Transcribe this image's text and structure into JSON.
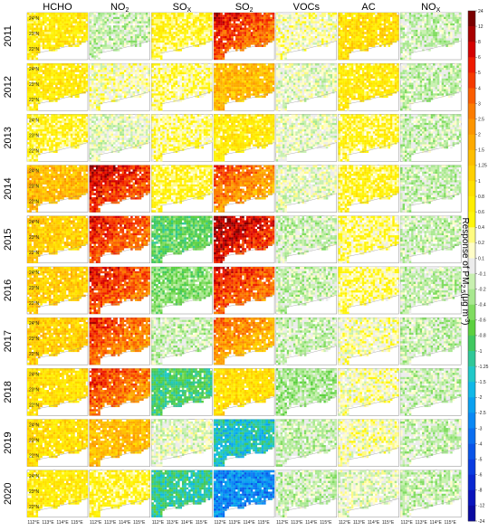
{
  "chart_data": {
    "type": "heatmap",
    "title": "",
    "columns": [
      {
        "base": "HCHO",
        "sub": ""
      },
      {
        "base": "NO",
        "sub": "2"
      },
      {
        "base": "SO",
        "sub": "X"
      },
      {
        "base": "SO",
        "sub": "2"
      },
      {
        "base": "VOCs",
        "sub": ""
      },
      {
        "base": "AC",
        "sub": ""
      },
      {
        "base": "NO",
        "sub": "X"
      }
    ],
    "rows": [
      "2011",
      "2012",
      "2013",
      "2014",
      "2015",
      "2016",
      "2017",
      "2018",
      "2019",
      "2020"
    ],
    "lat_ticks": [
      "24°N",
      "23°N",
      "22°N"
    ],
    "lon_ticks": [
      "112°E",
      "113°E",
      "114°E",
      "115°E"
    ],
    "colorbar": {
      "label_prefix": "Response of  PM",
      "label_sub": "2.5",
      "label_suffix": "(μg m",
      "label_sup": "-3",
      "label_end": ")",
      "ticks": [
        "24",
        "12",
        "8",
        "6",
        "5",
        "4",
        "3",
        "2.5",
        "2",
        "1.5",
        "1.25",
        "1",
        "0.8",
        "0.6",
        "0.4",
        "0.2",
        "0.1",
        "-0.1",
        "-0.2",
        "-0.4",
        "-0.6",
        "-0.8",
        "-1",
        "-1.25",
        "-1.5",
        "-2",
        "-2.5",
        "-3",
        "-4",
        "-5",
        "-6",
        "-8",
        "-12",
        "-24"
      ],
      "colors": [
        "#7a0000",
        "#a80000",
        "#d40000",
        "#ee1a00",
        "#f53a00",
        "#fa5c00",
        "#fc7c00",
        "#fd9500",
        "#feaa00",
        "#febe00",
        "#ffd000",
        "#ffe000",
        "#ffee00",
        "#fff60a",
        "#fffb80",
        "#fffdc8",
        "#ececec",
        "#c8f0b0",
        "#a8e890",
        "#80dc60",
        "#5cd040",
        "#40c860",
        "#30c898",
        "#20c8c8",
        "#10b8e8",
        "#0aa0f0",
        "#0a88f5",
        "#0a6ef0",
        "#0a54e8",
        "#0a3ce0",
        "#0a28d0",
        "#0a14bc",
        "#0a0aa0"
      ]
    },
    "mean_level_matrix": [
      [
        12,
        17,
        13,
        5,
        15,
        11,
        17
      ],
      [
        12,
        15,
        14,
        9,
        16,
        12,
        17
      ],
      [
        13,
        16,
        14,
        12,
        16,
        13,
        17
      ],
      [
        9,
        4,
        13,
        7,
        16,
        13,
        17
      ],
      [
        10,
        5,
        20,
        3,
        17,
        14,
        17
      ],
      [
        10,
        5,
        19,
        5,
        17,
        14,
        17
      ],
      [
        10,
        6,
        17,
        8,
        17,
        15,
        17
      ],
      [
        11,
        6,
        21,
        11,
        18,
        15,
        17
      ],
      [
        11,
        9,
        16,
        23,
        17,
        15,
        17
      ],
      [
        12,
        13,
        22,
        26,
        17,
        16,
        17
      ]
    ]
  }
}
